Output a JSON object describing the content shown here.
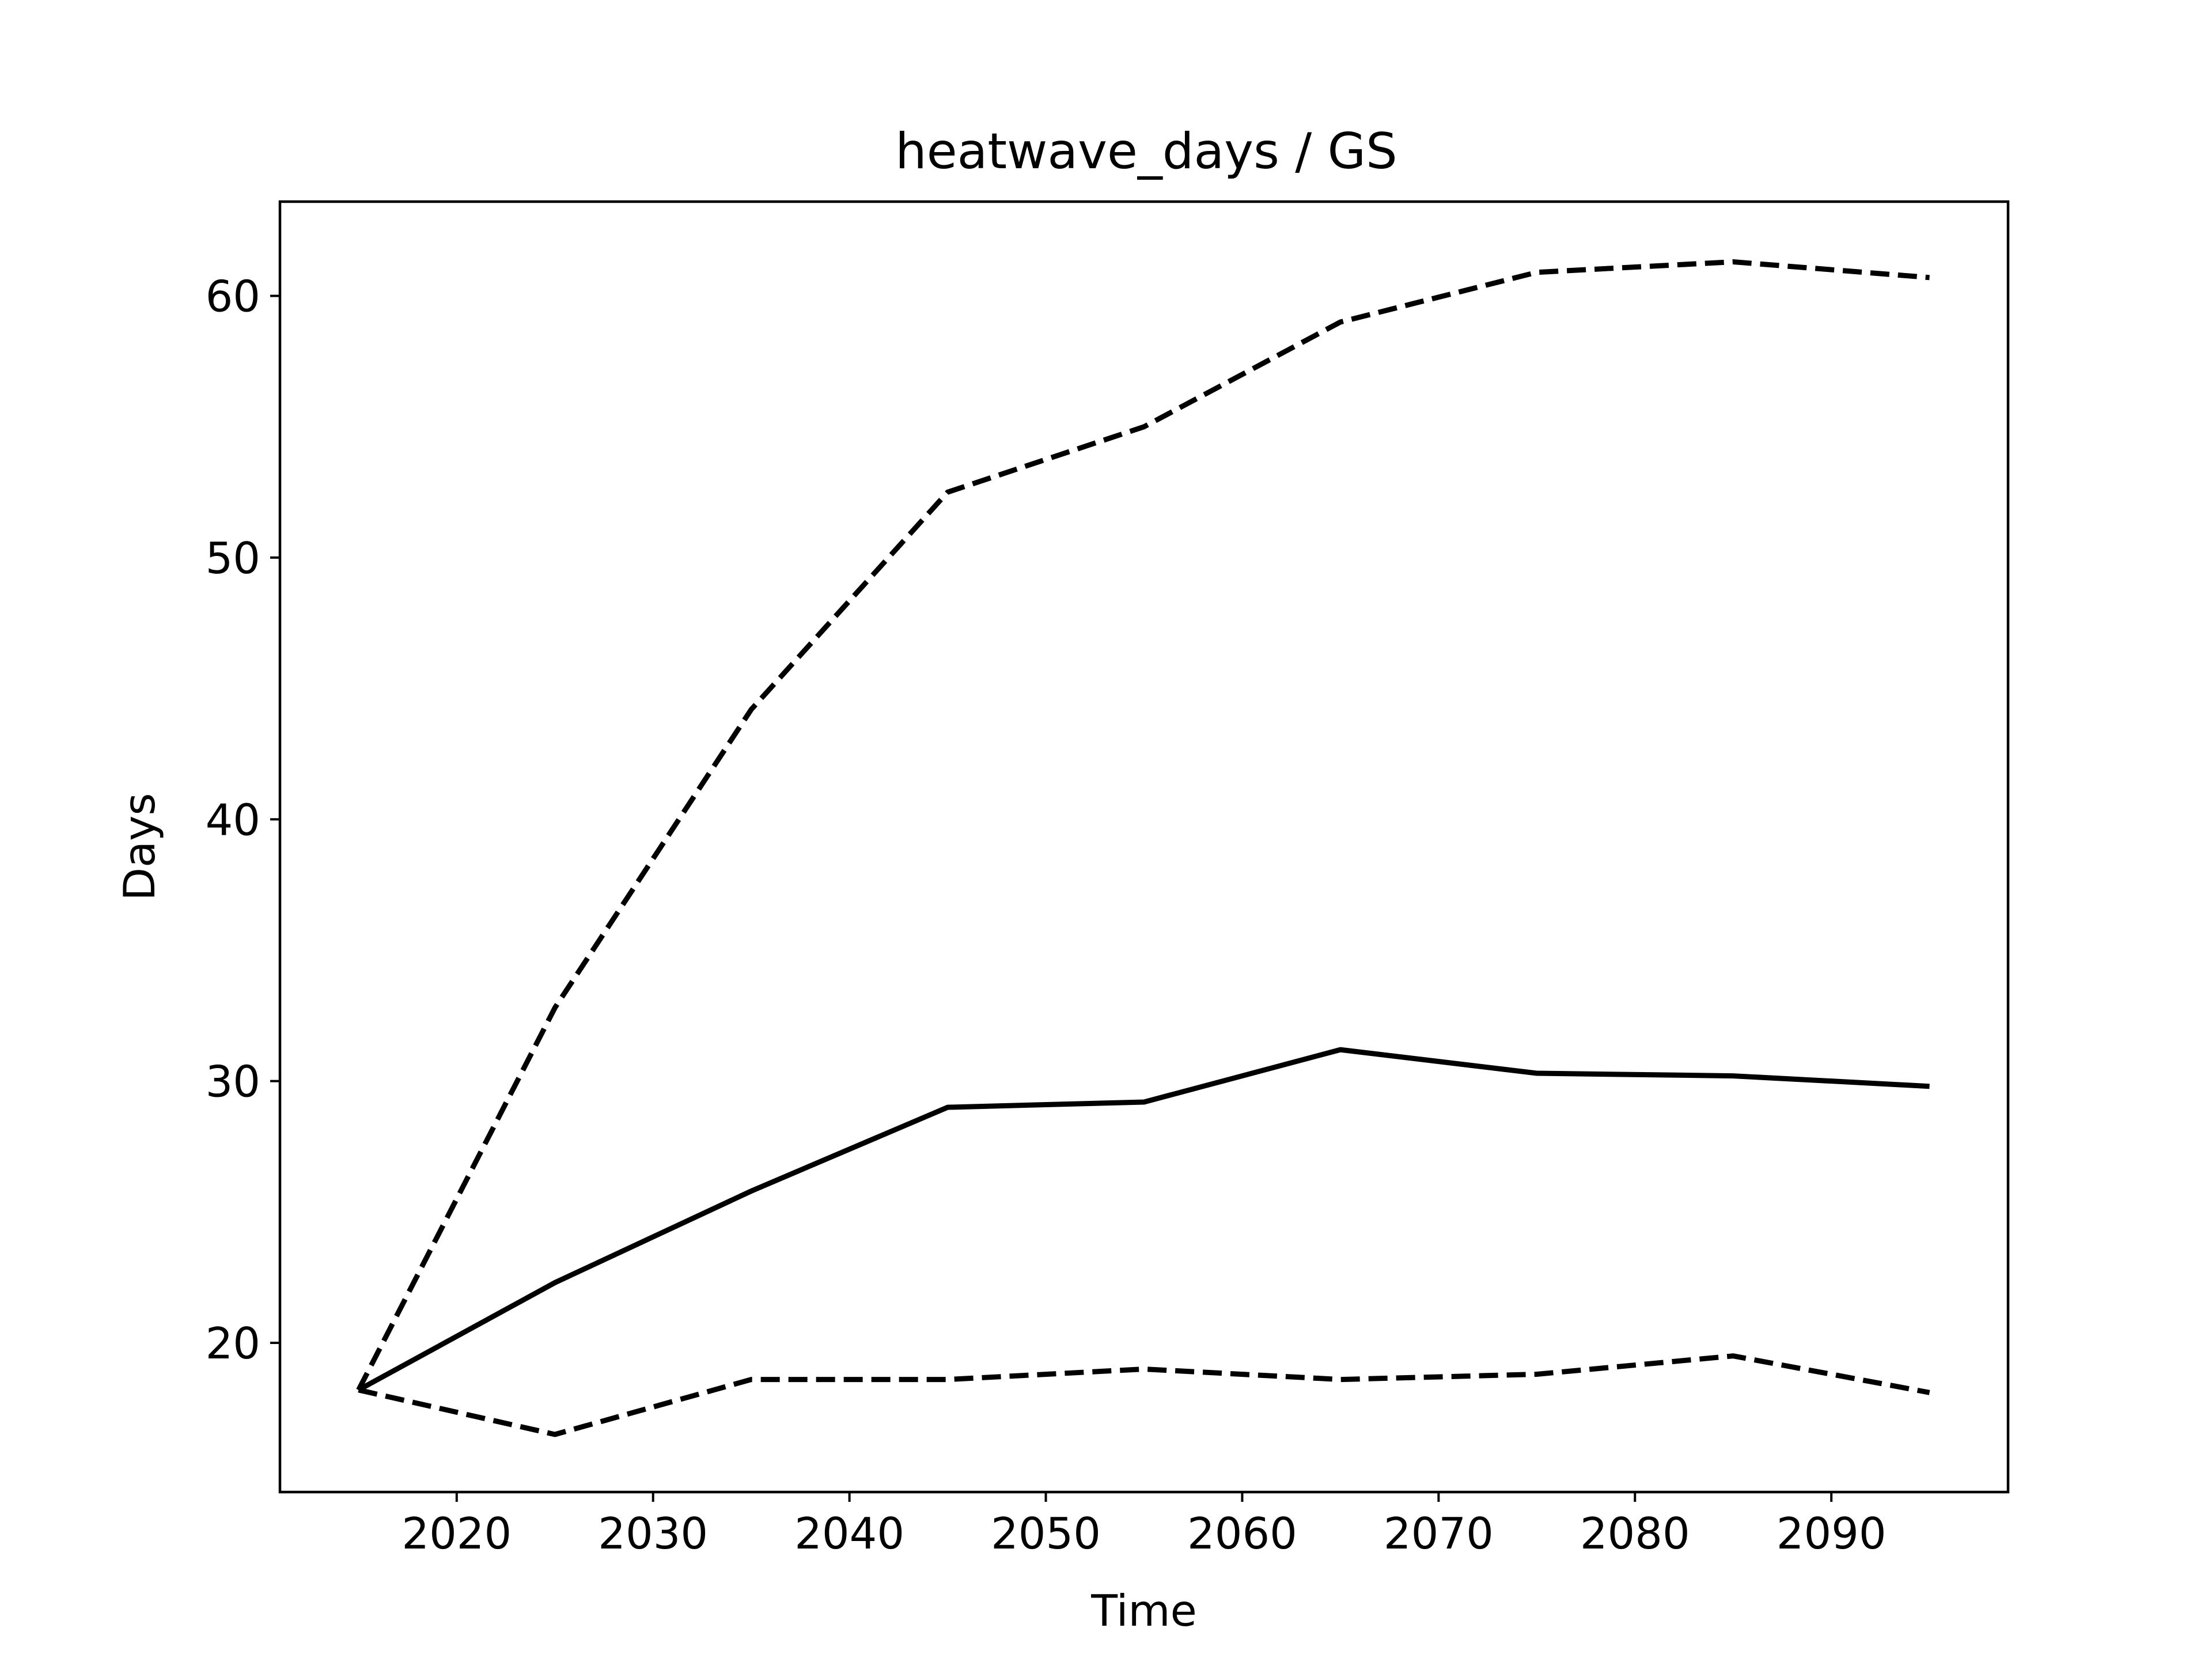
{
  "chart_data": {
    "type": "line",
    "title": "heatwave_days / GS",
    "xlabel": "Time",
    "ylabel": "Days",
    "xlim": [
      2011,
      2099
    ],
    "ylim": [
      14.3,
      63.6
    ],
    "xticks": [
      2020,
      2030,
      2040,
      2050,
      2060,
      2070,
      2080,
      2090
    ],
    "yticks": [
      20,
      30,
      40,
      50,
      60
    ],
    "grid": false,
    "line_color": "#000000",
    "x": [
      2015,
      2025,
      2035,
      2045,
      2055,
      2065,
      2075,
      2085,
      2095
    ],
    "series": [
      {
        "style": "solid",
        "values": [
          18.2,
          22.3,
          25.8,
          29.0,
          29.2,
          31.2,
          30.3,
          30.2,
          29.8
        ]
      },
      {
        "style": "dashed",
        "values": [
          18.2,
          32.8,
          44.2,
          52.5,
          55.0,
          59.0,
          60.9,
          61.3,
          60.7
        ]
      },
      {
        "style": "dashed",
        "values": [
          18.2,
          16.5,
          18.6,
          18.6,
          19.0,
          18.6,
          18.8,
          19.5,
          18.1
        ]
      }
    ]
  }
}
